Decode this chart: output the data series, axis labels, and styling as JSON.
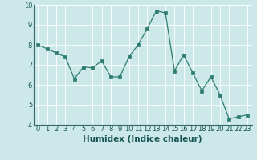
{
  "x": [
    0,
    1,
    2,
    3,
    4,
    5,
    6,
    7,
    8,
    9,
    10,
    11,
    12,
    13,
    14,
    15,
    16,
    17,
    18,
    19,
    20,
    21,
    22,
    23
  ],
  "y": [
    8.0,
    7.8,
    7.6,
    7.4,
    6.3,
    6.9,
    6.85,
    7.2,
    6.4,
    6.4,
    7.4,
    8.0,
    8.8,
    9.7,
    9.6,
    6.7,
    7.5,
    6.6,
    5.7,
    6.4,
    5.5,
    4.3,
    4.4,
    4.5
  ],
  "line_color": "#2e7d6e",
  "marker_color": "#2e7d6e",
  "bg_color": "#cce8e8",
  "grid_color": "#b0d8d8",
  "xlabel": "Humidex (Indice chaleur)",
  "ylim": [
    4,
    10
  ],
  "xlim_min": -0.5,
  "xlim_max": 23.5,
  "yticks": [
    4,
    5,
    6,
    7,
    8,
    9,
    10
  ],
  "xticks": [
    0,
    1,
    2,
    3,
    4,
    5,
    6,
    7,
    8,
    9,
    10,
    11,
    12,
    13,
    14,
    15,
    16,
    17,
    18,
    19,
    20,
    21,
    22,
    23
  ],
  "tick_fontsize": 6,
  "xlabel_fontsize": 7.5,
  "linewidth": 0.9,
  "markersize": 2.2
}
